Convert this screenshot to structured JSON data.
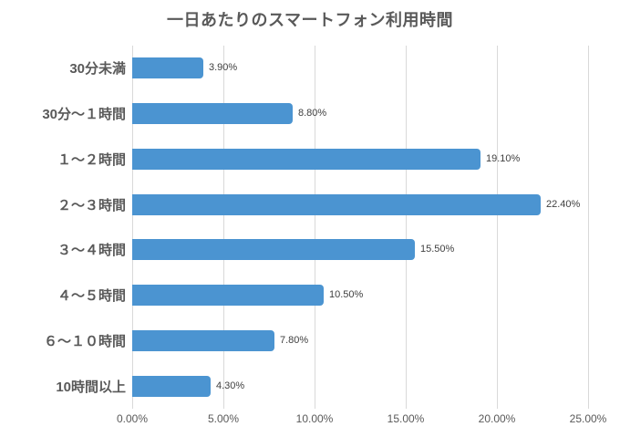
{
  "title": "一日あたりのスマートフォン利用時間",
  "chart_data": {
    "type": "bar",
    "orientation": "horizontal",
    "title": "一日あたりのスマートフォン利用時間",
    "categories": [
      "30分未満",
      "30分～１時間",
      "１～２時間",
      "２～３時間",
      "３～４時間",
      "４～５時間",
      "６～１０時間",
      "10時間以上"
    ],
    "values": [
      3.9,
      8.8,
      19.1,
      22.4,
      15.5,
      10.5,
      7.8,
      4.3
    ],
    "value_labels": [
      "3.90%",
      "8.80%",
      "19.10%",
      "22.40%",
      "15.50%",
      "10.50%",
      "7.80%",
      "4.30%"
    ],
    "x_tick_labels": [
      "0.00%",
      "5.00%",
      "10.00%",
      "15.00%",
      "20.00%",
      "25.00%"
    ],
    "x_tick_values": [
      0,
      5,
      10,
      15,
      20,
      25
    ],
    "xlim": [
      0,
      25
    ],
    "grid": "vertical-on",
    "legend": "none",
    "bar_color": "#4b94d1",
    "gridline_color": "#d9d9d9",
    "title_color": "#595959",
    "category_label_color": "#595959",
    "value_label_color": "#404040",
    "axis_label_color": "#595959"
  }
}
